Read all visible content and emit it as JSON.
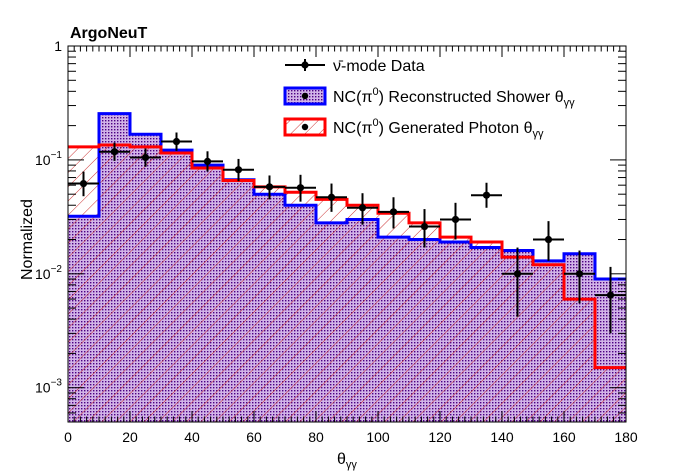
{
  "chart_data": {
    "type": "histogram",
    "title": "ArgoNeuT",
    "xlabel": "θ",
    "xlabel_sub": "γγ",
    "ylabel": "Normalized",
    "xlim": [
      0,
      180
    ],
    "ylim": [
      0.0005,
      1
    ],
    "yscale": "log",
    "x_ticks": [
      "0",
      "20",
      "40",
      "60",
      "80",
      "100",
      "120",
      "140",
      "160",
      "180"
    ],
    "y_ticks": [
      {
        "base": "1",
        "exp": ""
      },
      {
        "base": "10",
        "exp": "−1"
      },
      {
        "base": "10",
        "exp": "−2"
      },
      {
        "base": "10",
        "exp": "−3"
      }
    ],
    "bin_edges": [
      0,
      10,
      20,
      30,
      40,
      50,
      60,
      70,
      80,
      90,
      100,
      110,
      120,
      130,
      140,
      150,
      160,
      170,
      180
    ],
    "series": [
      {
        "name": "NC(π0) Reconstructed Shower θγγ",
        "kind": "hist-filled",
        "line_color": "#0000ff",
        "fill_color": "#4b0082",
        "values": [
          0.032,
          0.255,
          0.168,
          0.122,
          0.09,
          0.067,
          0.05,
          0.04,
          0.028,
          0.03,
          0.021,
          0.02,
          0.019,
          0.017,
          0.016,
          0.013,
          0.015,
          0.009
        ]
      },
      {
        "name": "NC(π0) Generated Photon θγγ",
        "kind": "hist-hatched",
        "line_color": "#ff0000",
        "values": [
          0.13,
          0.135,
          0.13,
          0.115,
          0.085,
          0.066,
          0.058,
          0.052,
          0.045,
          0.04,
          0.034,
          0.028,
          0.021,
          0.019,
          0.014,
          0.012,
          0.006,
          0.0015
        ]
      },
      {
        "name": "ν̄-mode Data",
        "kind": "points",
        "color": "#000000",
        "x": [
          5,
          15,
          25,
          35,
          45,
          55,
          65,
          75,
          85,
          95,
          105,
          115,
          125,
          135,
          145,
          155,
          165,
          175
        ],
        "y": [
          0.062,
          0.118,
          0.105,
          0.145,
          0.097,
          0.082,
          0.058,
          0.057,
          0.047,
          0.038,
          0.035,
          0.026,
          0.03,
          0.049,
          0.01,
          0.02,
          0.01,
          0.0065
        ],
        "yerr_low": [
          0.014,
          0.02,
          0.018,
          0.025,
          0.018,
          0.017,
          0.013,
          0.014,
          0.012,
          0.011,
          0.01,
          0.009,
          0.01,
          0.011,
          0.0058,
          0.007,
          0.0045,
          0.0035
        ],
        "yerr_high": [
          0.017,
          0.024,
          0.021,
          0.029,
          0.022,
          0.02,
          0.015,
          0.017,
          0.015,
          0.013,
          0.012,
          0.011,
          0.012,
          0.014,
          0.007,
          0.009,
          0.006,
          0.005
        ]
      }
    ],
    "legend": {
      "placement": "top-right",
      "items": [
        {
          "series": 2,
          "label": "ν̄-mode Data"
        },
        {
          "series": 0,
          "label_pre": "NC(π",
          "label_sup": "0",
          "label_post": ") Reconstructed Shower θ",
          "label_sub": "γγ"
        },
        {
          "series": 1,
          "label_pre": "NC(π",
          "label_sup": "0",
          "label_post": ") Generated Photon θ",
          "label_sub": "γγ"
        }
      ]
    },
    "grid": false
  }
}
